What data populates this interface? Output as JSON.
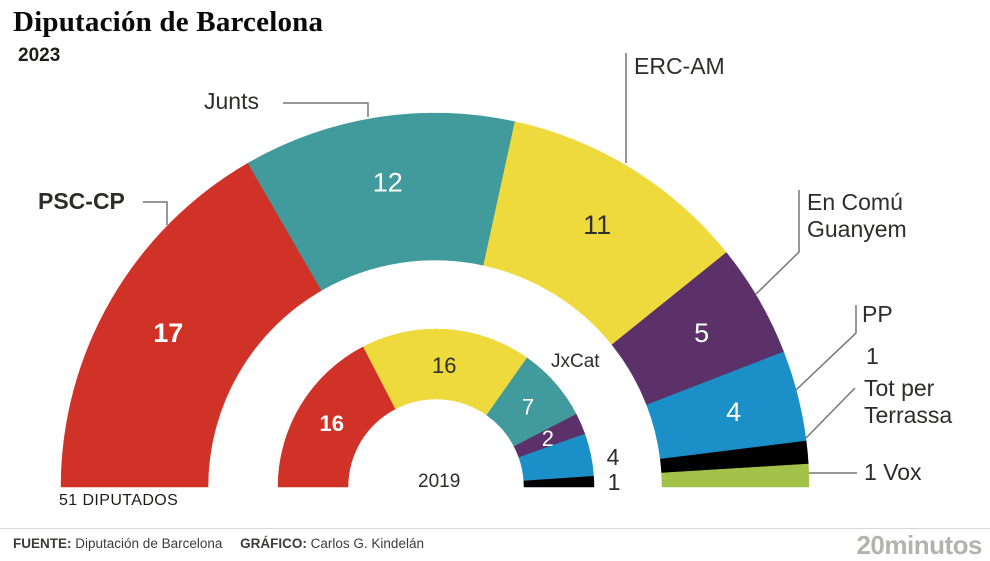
{
  "chart_data": {
    "type": "half-donut",
    "title": "Diputación de Barcelona",
    "subtitle": "2023",
    "total_label": "51 DIPUTADOS",
    "legend_position": "callout-labels",
    "rings": [
      {
        "name": "2023",
        "position": "outer",
        "segments": [
          {
            "party": "PSC-CP",
            "seats": 17,
            "color": "#d03228",
            "text_color": "#ffffff",
            "bold": true
          },
          {
            "party": "Junts",
            "seats": 12,
            "color": "#419a9b",
            "text_color": "#ffffff"
          },
          {
            "party": "ERC-AM",
            "seats": 11,
            "color": "#eeda3d",
            "text_color": "#2f2f2d"
          },
          {
            "party": "En Comú Guanyem",
            "seats": 5,
            "color": "#5c3069",
            "text_color": "#ffffff"
          },
          {
            "party": "PP",
            "seats": 4,
            "color": "#1b90c8",
            "text_color": "#ffffff"
          },
          {
            "party": "Tot per Terrassa",
            "seats": 1,
            "color": "#000000"
          },
          {
            "party": "Vox",
            "seats": 1,
            "color": "#a2c24a"
          }
        ]
      },
      {
        "name": "2019",
        "position": "inner",
        "segments": [
          {
            "party": "PSC-CP",
            "seats": 16,
            "color": "#d03228",
            "text_color": "#ffffff",
            "bold": true
          },
          {
            "party": "ERC-AM",
            "seats": 16,
            "color": "#eeda3d",
            "text_color": "#2f2f2d"
          },
          {
            "party": "JxCat",
            "seats": 7,
            "color": "#419a9b",
            "text_color": "#ffffff"
          },
          {
            "party": "",
            "seats": 2,
            "color": "#5c3069",
            "text_color": "#ffffff"
          },
          {
            "party": "",
            "seats": 4,
            "color": "#1b90c8",
            "value_outside": true
          },
          {
            "party": "",
            "seats": 1,
            "color": "#000000",
            "value_outside": true
          }
        ]
      }
    ]
  },
  "footer": {
    "source_label": "FUENTE:",
    "source": "Diputación de Barcelona",
    "credit_label": "GRÁFICO:",
    "credit": "Carlos G. Kindelán",
    "brand": "20minutos"
  }
}
